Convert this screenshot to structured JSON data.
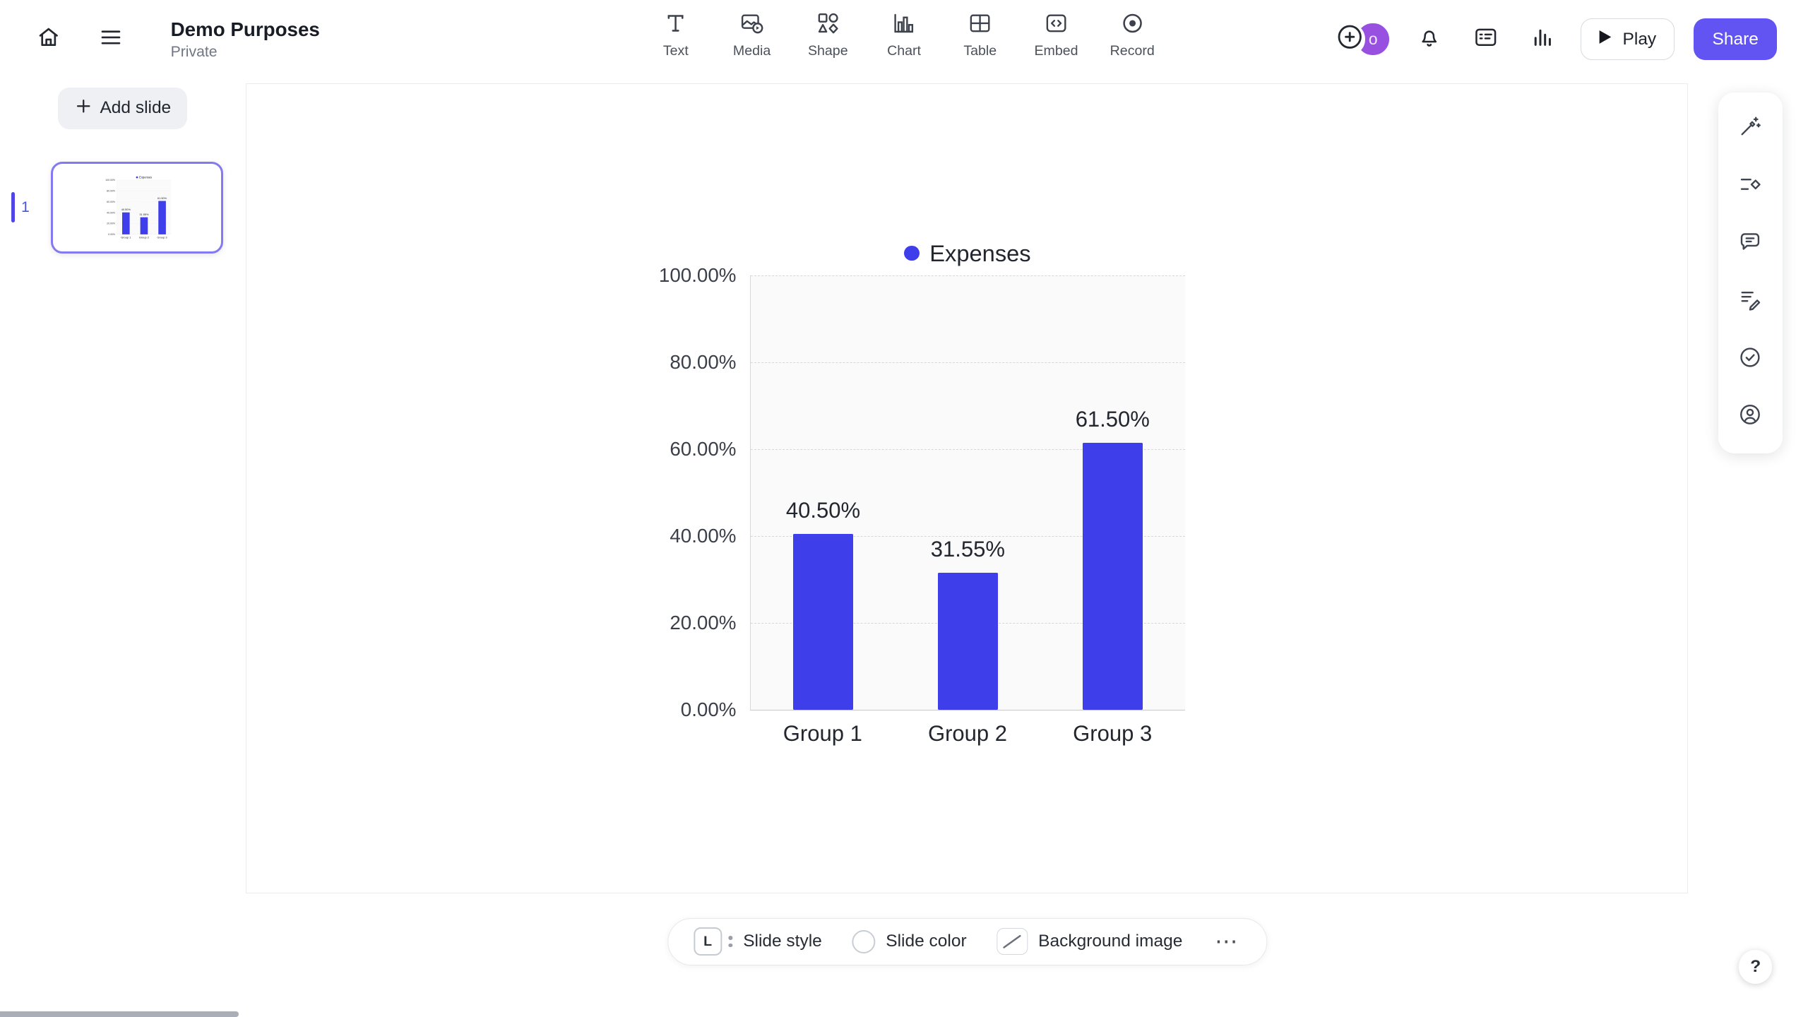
{
  "colors": {
    "accent": "#6254f3",
    "bar_color": "#3e3eeb",
    "thumb_border": "#8579f2",
    "avatar_bg": "#9750e0",
    "slide_number_color": "#4a55dd",
    "active_indicator": "#4f46e5"
  },
  "header": {
    "title": "Demo Purposes",
    "privacy": "Private",
    "tools": [
      {
        "label": "Text",
        "icon": "text-icon"
      },
      {
        "label": "Media",
        "icon": "media-icon"
      },
      {
        "label": "Shape",
        "icon": "shape-icon"
      },
      {
        "label": "Chart",
        "icon": "chart-icon"
      },
      {
        "label": "Table",
        "icon": "table-icon"
      },
      {
        "label": "Embed",
        "icon": "embed-icon"
      },
      {
        "label": "Record",
        "icon": "record-icon"
      }
    ],
    "avatar_initial": "o",
    "play_label": "Play",
    "share_label": "Share",
    "action_icons": [
      "add-collaborator-icon",
      "notifications-bell-icon",
      "notes-card-icon",
      "analytics-icon"
    ]
  },
  "sidebar": {
    "add_slide_label": "Add slide",
    "slides": [
      {
        "number": "1",
        "selected": true
      }
    ]
  },
  "chart_data": {
    "type": "bar",
    "legend_label": "Expenses",
    "legend_position": "top",
    "series_color": "#3e3eeb",
    "categories": [
      "Group 1",
      "Group 2",
      "Group 3"
    ],
    "values": [
      40.5,
      31.55,
      61.5
    ],
    "value_labels": [
      "40.50%",
      "31.55%",
      "61.50%"
    ],
    "yticks": [
      "100.00%",
      "80.00%",
      "60.00%",
      "40.00%",
      "20.00%",
      "0.00%"
    ],
    "ylim": [
      0,
      100
    ],
    "grid": true,
    "plot_background": "#fafafa"
  },
  "footer_toolbar": {
    "slide_style_badge": "L",
    "slide_style_label": "Slide style",
    "slide_color_label": "Slide color",
    "background_image_label": "Background image",
    "more_label": "⋯"
  },
  "rail_icons": [
    "magic-wand-icon",
    "outline-diamond-icon",
    "comment-icon",
    "notes-pencil-icon",
    "check-circle-icon",
    "user-circle-icon"
  ],
  "help_label": "?"
}
